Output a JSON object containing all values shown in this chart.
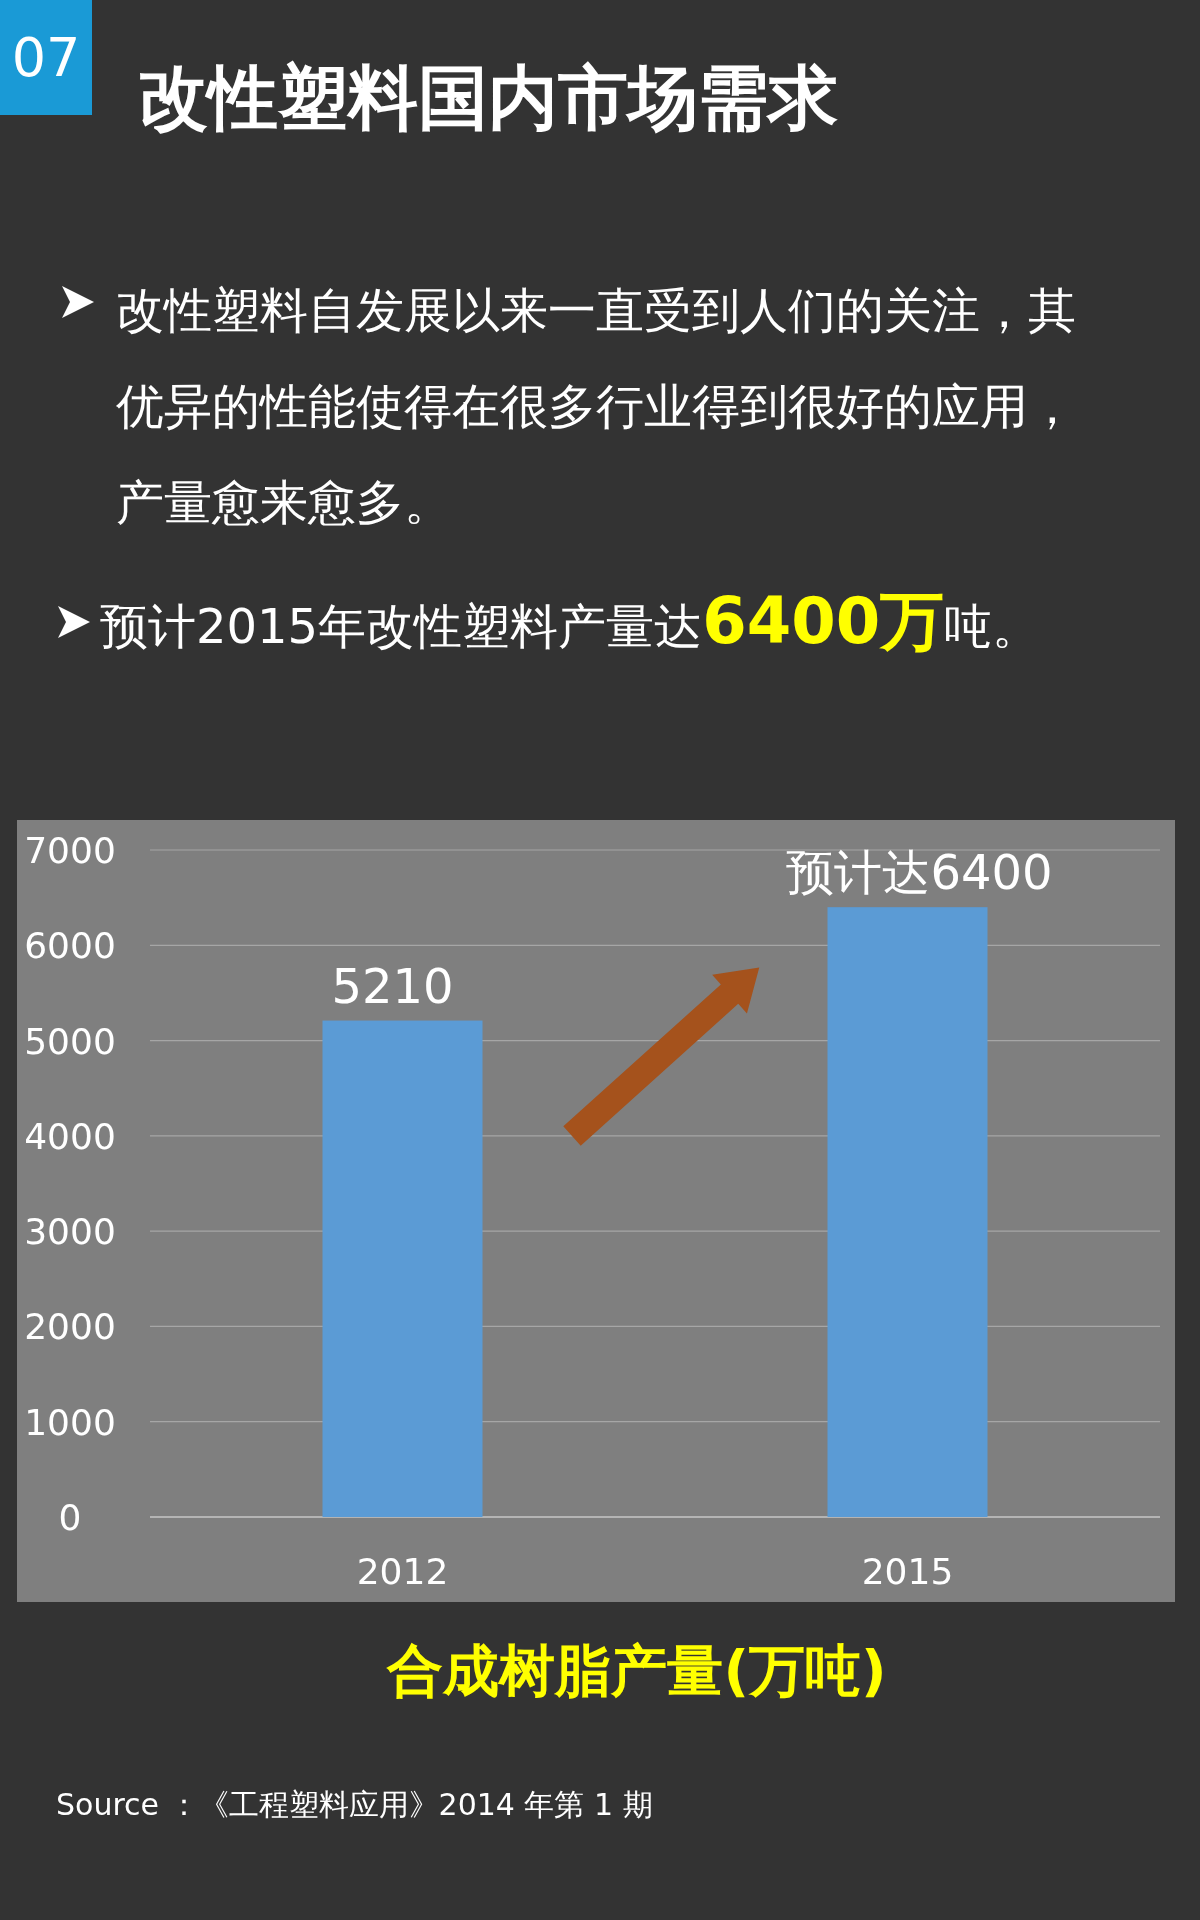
{
  "chart_data": {
    "type": "bar",
    "title": "改性塑料国内市场需求",
    "annotations": [
      "07",
      "改性塑料自发展以来一直受到人们的关注，其优异的性能使得在很多行业得到很好的应用，产量愈来愈多。",
      "预计2015年改性塑料产量达**6400万**吨。",
      "Source ：《工程塑料应用》2014 年第 1 期"
    ],
    "xlabel": "合成树脂产量(万吨)",
    "categories": [
      "2012",
      "2015"
    ],
    "values": [
      5210,
      6400
    ],
    "value_labels": [
      "5210",
      "预计达6400"
    ],
    "color": "#5b9bd5",
    "ylim": [
      0,
      7000
    ],
    "yticks": [
      0,
      1000,
      2000,
      3000,
      4000,
      5000,
      6000,
      7000
    ],
    "grid": "y"
  }
}
